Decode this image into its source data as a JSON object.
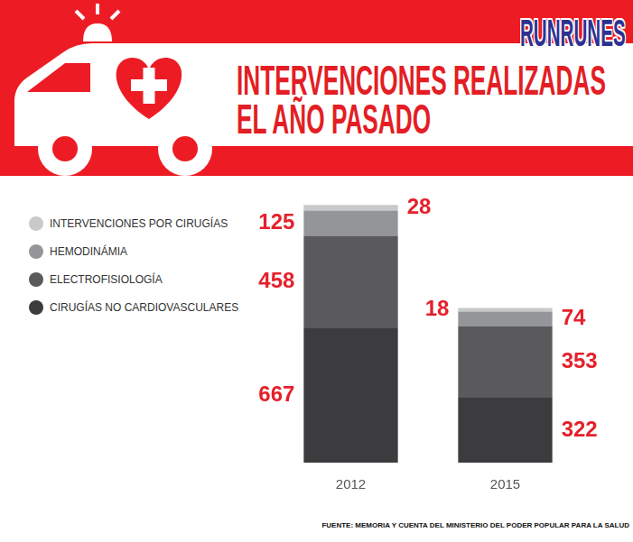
{
  "chart_data": {
    "type": "bar",
    "title": "INTERVENCIONES REALIZADAS EL AÑO PASADO",
    "logo": "RUNRUNES",
    "source": "FUENTE: MEMORIA Y CUENTA DEL MINISTERIO DEL PODER POPULAR PARA LA SALUD",
    "categories": [
      "2012",
      "2015"
    ],
    "series": [
      {
        "name": "INTERVENCIONES POR CIRUGÍAS",
        "color": "#c8c9ca",
        "values": [
          28,
          18
        ]
      },
      {
        "name": "HEMODINÁMIA",
        "color": "#939598",
        "values": [
          125,
          74
        ]
      },
      {
        "name": "ELECTROFISIOLOGÍA",
        "color": "#5a5a5c",
        "values": [
          458,
          353
        ]
      },
      {
        "name": "CIRUGÍAS NO CARDIOVASCULARES",
        "color": "#3c3c3e",
        "values": [
          667,
          322
        ]
      }
    ],
    "stacked": true,
    "data_labels": true,
    "grid": false,
    "legend": "left",
    "tick_labels": "x"
  }
}
